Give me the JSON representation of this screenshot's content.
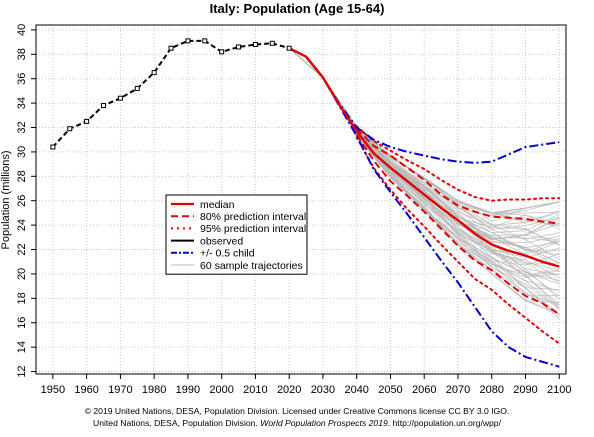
{
  "chart_data": {
    "type": "line",
    "title": "Italy: Population (Age 15-64)",
    "ylabel": "Population (millions)",
    "xlabel": "",
    "xlim": [
      1945,
      2102
    ],
    "ylim": [
      11.8,
      40.4
    ],
    "x_ticks": [
      1950,
      1960,
      1970,
      1980,
      1990,
      2000,
      2010,
      2020,
      2030,
      2040,
      2050,
      2060,
      2070,
      2080,
      2090,
      2100
    ],
    "y_ticks": [
      12,
      14,
      16,
      18,
      20,
      22,
      24,
      26,
      28,
      30,
      32,
      34,
      36,
      38,
      40
    ],
    "grid": true,
    "legend_position": "center-left",
    "legend": [
      {
        "label": "median",
        "style": "solid",
        "color": "#e00000",
        "width": 2.2
      },
      {
        "label": "80% prediction interval",
        "style": "dashed",
        "color": "#e00000",
        "width": 2
      },
      {
        "label": "95% prediction interval",
        "style": "dotted",
        "color": "#e00000",
        "width": 2
      },
      {
        "label": "observed",
        "style": "solid",
        "color": "#000000",
        "width": 2
      },
      {
        "label": "+/- 0.5 child",
        "style": "dashdot",
        "color": "#0000cc",
        "width": 2
      },
      {
        "label": "60 sample trajectories",
        "style": "solid",
        "color": "#bbbbbb",
        "width": 1
      }
    ],
    "series": [
      {
        "name": "observed",
        "color": "#000000",
        "style": "dashed-markers",
        "x": [
          1950,
          1955,
          1960,
          1965,
          1970,
          1975,
          1980,
          1985,
          1990,
          1995,
          2000,
          2005,
          2010,
          2015,
          2020
        ],
        "y": [
          30.4,
          31.9,
          32.5,
          33.8,
          34.4,
          35.2,
          36.5,
          38.5,
          39.1,
          39.1,
          38.2,
          38.6,
          38.8,
          38.9,
          38.5
        ]
      },
      {
        "name": "median",
        "color": "#e00000",
        "style": "solid",
        "x": [
          2020,
          2025,
          2030,
          2035,
          2040,
          2045,
          2050,
          2055,
          2060,
          2065,
          2070,
          2075,
          2080,
          2085,
          2090,
          2095,
          2100
        ],
        "y": [
          38.5,
          37.8,
          36.1,
          33.8,
          31.7,
          29.9,
          28.7,
          27.6,
          26.5,
          25.4,
          24.4,
          23.3,
          22.4,
          21.9,
          21.5,
          21.0,
          20.6
        ]
      },
      {
        "name": "80% prediction interval (upper)",
        "color": "#e00000",
        "style": "dashed",
        "x": [
          2040,
          2045,
          2050,
          2055,
          2060,
          2065,
          2070,
          2075,
          2080,
          2085,
          2090,
          2095,
          2100
        ],
        "y": [
          31.9,
          30.5,
          29.7,
          28.7,
          27.7,
          26.5,
          25.6,
          25.1,
          24.7,
          24.6,
          24.5,
          24.3,
          24.1
        ]
      },
      {
        "name": "80% prediction interval (lower)",
        "color": "#e00000",
        "style": "dashed",
        "x": [
          2040,
          2045,
          2050,
          2055,
          2060,
          2065,
          2070,
          2075,
          2080,
          2085,
          2090,
          2095,
          2100
        ],
        "y": [
          31.4,
          29.3,
          27.6,
          26.4,
          25.1,
          23.7,
          22.3,
          21.1,
          20.3,
          19.2,
          18.2,
          17.6,
          16.7
        ]
      },
      {
        "name": "95% prediction interval (upper)",
        "color": "#e00000",
        "style": "dotted",
        "x": [
          2040,
          2045,
          2050,
          2055,
          2060,
          2065,
          2070,
          2075,
          2080,
          2085,
          2090,
          2095,
          2100
        ],
        "y": [
          32.1,
          30.9,
          30.1,
          29.3,
          28.6,
          27.7,
          26.9,
          26.3,
          26.0,
          26.1,
          26.1,
          26.2,
          26.2
        ]
      },
      {
        "name": "95% prediction interval (lower)",
        "color": "#e00000",
        "style": "dotted",
        "x": [
          2040,
          2045,
          2050,
          2055,
          2060,
          2065,
          2070,
          2075,
          2080,
          2085,
          2090,
          2095,
          2100
        ],
        "y": [
          31.2,
          28.7,
          26.9,
          25.3,
          23.9,
          22.4,
          21.0,
          19.6,
          18.7,
          17.5,
          16.4,
          15.3,
          14.3
        ]
      },
      {
        "name": "+/- 0.5 child (upper)",
        "color": "#0000cc",
        "style": "dashdot",
        "x": [
          2020,
          2025,
          2030,
          2035,
          2040,
          2045,
          2050,
          2055,
          2060,
          2065,
          2070,
          2075,
          2080,
          2085,
          2090,
          2095,
          2100
        ],
        "y": [
          38.5,
          37.8,
          36.1,
          33.9,
          32.0,
          31.0,
          30.4,
          30.0,
          29.7,
          29.4,
          29.2,
          29.1,
          29.2,
          29.8,
          30.4,
          30.6,
          30.8
        ]
      },
      {
        "name": "+/- 0.5 child (lower)",
        "color": "#0000cc",
        "style": "dashdot",
        "x": [
          2020,
          2025,
          2030,
          2035,
          2040,
          2045,
          2050,
          2055,
          2060,
          2065,
          2070,
          2075,
          2080,
          2085,
          2090,
          2095,
          2100
        ],
        "y": [
          38.5,
          37.8,
          36.1,
          33.7,
          31.3,
          28.6,
          26.7,
          24.9,
          23.0,
          21.1,
          19.3,
          17.3,
          15.3,
          14.0,
          13.2,
          12.8,
          12.4
        ]
      }
    ],
    "sample_trajectories": {
      "count": 60,
      "color": "#b8b8b8",
      "x": [
        2040,
        2050,
        2060,
        2070,
        2080,
        2090,
        2100
      ],
      "low": [
        31.3,
        27.9,
        25.2,
        22.4,
        20.0,
        17.8,
        16.3
      ],
      "high": [
        32.1,
        29.7,
        27.9,
        26.0,
        25.0,
        25.4,
        25.9
      ]
    }
  },
  "credit": {
    "line1": "© 2019 United Nations, DESA, Population Division. Licensed under Creative Commons license CC BY 3.0 IGO.",
    "line2_prefix": "United Nations, DESA, Population Division. ",
    "line2_italic": "World Population Prospects 2019",
    "line2_suffix": ". http://population.un.org/wpp/"
  }
}
